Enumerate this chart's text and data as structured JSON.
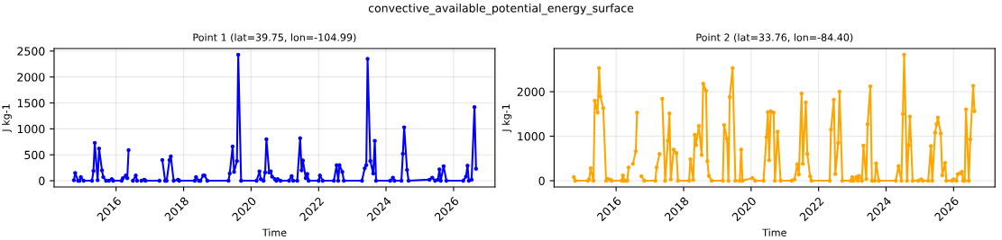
{
  "chart_data": [
    {
      "type": "line",
      "title": "Point 1 (lat=39.75, lon=-104.99)",
      "xlabel": "Time",
      "ylabel": "J kg-1",
      "annotations": [
        "convective_available_potential_energy_surface"
      ],
      "series": [
        {
          "color": "#0000ff",
          "x": [
            "2014-10-01",
            "2014-10-15",
            "2014-11-15",
            "2014-12-01",
            "2014-12-15",
            "2015-01-15",
            "2015-04-15",
            "2015-05-01",
            "2015-05-15",
            "2015-06-15",
            "2015-07-01",
            "2015-08-01",
            "2015-08-15",
            "2015-09-15",
            "2015-10-15",
            "2015-11-15",
            "2015-12-01",
            "2016-03-01",
            "2016-03-15",
            "2016-04-15",
            "2016-05-01",
            "2016-05-15",
            "2016-06-15",
            "2016-07-01",
            "2016-08-01",
            "2016-08-15",
            "2016-09-15",
            "2016-10-01",
            "2016-11-01",
            "2016-11-15",
            "2017-04-15",
            "2017-05-01",
            "2017-05-15",
            "2017-06-15",
            "2017-07-01",
            "2017-08-01",
            "2017-08-15",
            "2017-09-15",
            "2017-11-01",
            "2017-11-15",
            "2018-05-01",
            "2018-05-15",
            "2018-06-15",
            "2018-07-01",
            "2018-08-01",
            "2018-08-15",
            "2018-09-15",
            "2019-05-01",
            "2019-05-15",
            "2019-06-15",
            "2019-07-01",
            "2019-08-01",
            "2019-08-15",
            "2019-09-15",
            "2020-03-01",
            "2020-04-01",
            "2020-04-15",
            "2020-05-15",
            "2020-06-01",
            "2020-06-15",
            "2020-07-15",
            "2020-08-01",
            "2020-08-15",
            "2020-09-15",
            "2020-10-01",
            "2020-10-15",
            "2020-11-15",
            "2021-02-15",
            "2021-03-15",
            "2021-04-01",
            "2021-05-15",
            "2021-06-15",
            "2021-07-01",
            "2021-07-15",
            "2021-08-15",
            "2021-09-01",
            "2021-09-15",
            "2022-01-01",
            "2022-01-15",
            "2022-02-15",
            "2022-06-15",
            "2022-07-15",
            "2022-08-01",
            "2022-08-15",
            "2022-09-15",
            "2022-10-01",
            "2023-04-15",
            "2023-05-15",
            "2023-06-01",
            "2023-06-15",
            "2023-07-15",
            "2023-08-15",
            "2023-09-01",
            "2023-09-15",
            "2024-02-15",
            "2024-03-15",
            "2024-04-01",
            "2024-06-15",
            "2024-07-01",
            "2024-07-15",
            "2024-08-15",
            "2024-09-01",
            "2025-04-15",
            "2025-05-15",
            "2025-06-15",
            "2025-07-15",
            "2025-08-01",
            "2025-08-15",
            "2025-09-15",
            "2025-10-15",
            "2026-04-15",
            "2026-05-15",
            "2026-06-01",
            "2026-06-15",
            "2026-07-15",
            "2026-08-15",
            "2026-09-01"
          ],
          "values": [
            10,
            150,
            0,
            0,
            70,
            0,
            0,
            190,
            730,
            10,
            620,
            200,
            70,
            0,
            0,
            30,
            0,
            0,
            50,
            100,
            50,
            590,
            null,
            0,
            100,
            0,
            null,
            0,
            20,
            0,
            0,
            null,
            400,
            0,
            0,
            400,
            470,
            0,
            20,
            0,
            0,
            70,
            0,
            0,
            100,
            100,
            0,
            0,
            140,
            660,
            170,
            380,
            2430,
            0,
            0,
            180,
            30,
            0,
            160,
            800,
            160,
            180,
            80,
            30,
            0,
            30,
            0,
            0,
            90,
            0,
            0,
            820,
            200,
            390,
            50,
            130,
            0,
            0,
            100,
            0,
            0,
            300,
            0,
            300,
            170,
            0,
            0,
            240,
            300,
            2350,
            380,
            140,
            770,
            0,
            0,
            60,
            0,
            0,
            520,
            1030,
            210,
            0,
            20,
            60,
            0,
            20,
            220,
            0,
            280,
            0,
            0,
            80,
            290,
            0,
            20,
            1420,
            230
          ]
        }
      ],
      "xlim": [
        "2014-03-01",
        "2027-03-25"
      ],
      "xticks": [
        {
          "value": "2016-01-01",
          "label": "2016"
        },
        {
          "value": "2018-01-01",
          "label": "2018"
        },
        {
          "value": "2020-01-01",
          "label": "2020"
        },
        {
          "value": "2022-01-01",
          "label": "2022"
        },
        {
          "value": "2024-01-01",
          "label": "2024"
        },
        {
          "value": "2026-01-01",
          "label": "2026"
        }
      ],
      "ylim": [
        -120,
        2550
      ],
      "yticks": [
        0,
        500,
        1000,
        1500,
        2000,
        2500
      ],
      "grid": true,
      "marker": "circle",
      "line_style": "solid"
    },
    {
      "type": "line",
      "title": "Point 2 (lat=33.76, lon=-84.40)",
      "xlabel": "Time",
      "ylabel": "J kg-1",
      "series": [
        {
          "color": "#ffa500",
          "x": [
            "2014-10-01",
            "2014-10-15",
            "2015-03-01",
            "2015-03-15",
            "2015-04-01",
            "2015-05-01",
            "2015-05-15",
            "2015-06-15",
            "2015-07-01",
            "2015-07-15",
            "2015-08-15",
            "2015-09-15",
            "2015-10-01",
            "2015-11-01",
            "2015-11-15",
            "2016-03-01",
            "2016-03-15",
            "2016-04-01",
            "2016-05-01",
            "2016-05-15",
            "2016-06-01",
            "2016-07-01",
            "2016-08-01",
            "2016-08-15",
            "2016-09-15",
            "2016-10-01",
            "2016-11-01",
            "2017-03-01",
            "2017-03-15",
            "2017-04-15",
            "2017-05-01",
            "2017-05-15",
            "2017-06-15",
            "2017-07-15",
            "2017-08-01",
            "2017-08-15",
            "2017-09-15",
            "2017-10-15",
            "2017-11-01",
            "2018-03-01",
            "2018-03-15",
            "2018-04-15",
            "2018-05-01",
            "2018-05-15",
            "2018-06-15",
            "2018-07-15",
            "2018-08-01",
            "2018-09-01",
            "2018-09-15",
            "2018-10-01",
            "2018-11-01",
            "2019-03-01",
            "2019-03-15",
            "2019-04-15",
            "2019-05-01",
            "2019-05-15",
            "2019-06-15",
            "2019-07-15",
            "2019-09-01",
            "2019-09-15",
            "2019-10-01",
            "2020-01-15",
            "2020-02-15",
            "2020-05-15",
            "2020-06-15",
            "2020-07-01",
            "2020-07-15",
            "2020-08-01",
            "2020-09-01",
            "2020-09-15",
            "2020-10-15",
            "2020-11-15",
            "2021-03-15",
            "2021-04-15",
            "2021-05-15",
            "2021-06-01",
            "2021-07-01",
            "2021-07-15",
            "2021-08-15",
            "2021-09-01",
            "2021-10-01",
            "2021-10-15",
            "2022-05-01",
            "2022-05-15",
            "2022-06-15",
            "2022-07-01",
            "2022-08-01",
            "2022-08-15",
            "2022-09-15",
            "2022-12-15",
            "2023-01-01",
            "2023-01-15",
            "2023-02-15",
            "2023-03-01",
            "2023-03-15",
            "2023-04-15",
            "2023-05-01",
            "2023-06-01",
            "2023-06-15",
            "2023-07-15",
            "2023-08-01",
            "2023-09-01",
            "2023-09-15",
            "2023-10-15",
            "2024-04-15",
            "2024-05-15",
            "2024-06-15",
            "2024-07-01",
            "2024-07-15",
            "2024-08-15",
            "2024-09-01",
            "2024-09-15",
            "2024-10-15",
            "2024-12-15",
            "2025-01-15",
            "2025-02-01",
            "2025-04-01",
            "2025-05-01",
            "2025-05-15",
            "2025-06-15",
            "2025-07-01",
            "2025-07-15",
            "2025-08-15",
            "2025-09-01",
            "2025-10-01",
            "2025-10-15",
            "2025-12-15",
            "2026-01-01",
            "2026-02-01",
            "2026-02-15",
            "2026-03-15",
            "2026-04-01",
            "2026-04-15",
            "2026-05-01",
            "2026-05-15",
            "2026-06-15",
            "2026-07-01",
            "2026-08-01",
            "2026-08-15"
          ],
          "values": [
            80,
            0,
            0,
            30,
            280,
            0,
            1800,
            1530,
            2530,
            1890,
            1630,
            0,
            40,
            20,
            0,
            0,
            120,
            0,
            0,
            300,
            null,
            380,
            660,
            1530,
            null,
            100,
            0,
            0,
            300,
            600,
            null,
            1840,
            0,
            900,
            1510,
            30,
            700,
            620,
            0,
            0,
            480,
            20,
            1030,
            800,
            1230,
            580,
            2180,
            2020,
            440,
            110,
            0,
            0,
            1250,
            940,
            0,
            1880,
            2530,
            0,
            0,
            700,
            0,
            60,
            0,
            0,
            980,
            1540,
            460,
            1560,
            1530,
            0,
            1100,
            0,
            0,
            30,
            370,
            140,
            1960,
            380,
            1760,
            600,
            100,
            0,
            0,
            1150,
            1820,
            150,
            850,
            2000,
            0,
            0,
            80,
            0,
            80,
            0,
            110,
            0,
            790,
            40,
            1270,
            2120,
            0,
            0,
            390,
            0,
            0,
            330,
            0,
            1500,
            2830,
            0,
            800,
            1440,
            0,
            0,
            30,
            0,
            0,
            780,
            0,
            1080,
            1270,
            1420,
            1060,
            120,
            400,
            0,
            0,
            30,
            0,
            150,
            170,
            200,
            0,
            0,
            1600,
            0,
            930,
            2130,
            1560
          ]
        }
      ],
      "xlim": [
        "2014-03-01",
        "2027-03-25"
      ],
      "xticks": [
        {
          "value": "2016-01-01",
          "label": "2016"
        },
        {
          "value": "2018-01-01",
          "label": "2018"
        },
        {
          "value": "2020-01-01",
          "label": "2020"
        },
        {
          "value": "2022-01-01",
          "label": "2022"
        },
        {
          "value": "2024-01-01",
          "label": "2024"
        },
        {
          "value": "2026-01-01",
          "label": "2026"
        }
      ],
      "ylim": [
        -140,
        2970
      ],
      "yticks": [
        0,
        1000,
        2000
      ],
      "grid": true,
      "marker": "circle",
      "line_style": "solid"
    }
  ]
}
